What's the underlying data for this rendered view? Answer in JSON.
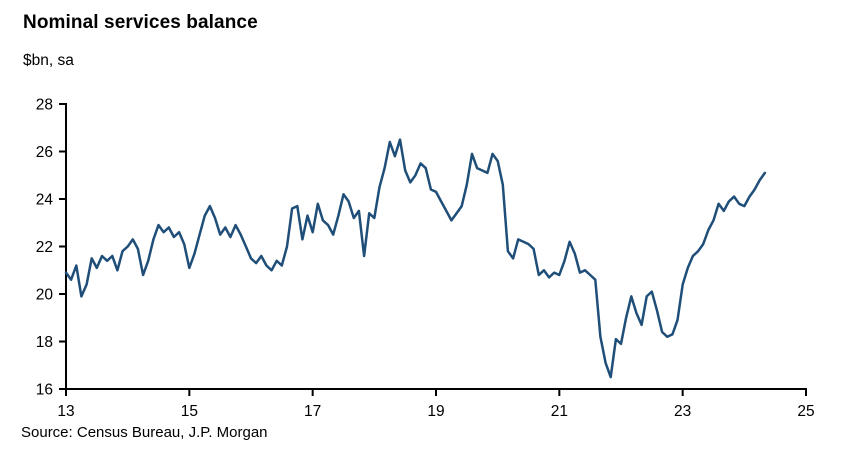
{
  "title": "Nominal services balance",
  "subtitle": "$bn, sa",
  "source": "Source: Census Bureau, J.P. Morgan",
  "chart_data": {
    "type": "line",
    "title": "Nominal services balance",
    "ylabel": "$bn, sa",
    "series_name": "Nominal services balance ($bn, sa)",
    "frequency": "monthly",
    "x_start": 13,
    "xlim": [
      13,
      25
    ],
    "ylim": [
      16,
      28
    ],
    "x_ticks": [
      13,
      15,
      17,
      19,
      21,
      23,
      25
    ],
    "y_ticks": [
      16,
      18,
      20,
      22,
      24,
      26,
      28
    ],
    "grid": false,
    "legend": "none",
    "line_color": "#1F4E79",
    "axis_color": "#000000",
    "values": [
      20.9,
      20.6,
      21.2,
      19.9,
      20.4,
      21.5,
      21.1,
      21.6,
      21.4,
      21.6,
      21.0,
      21.8,
      22.0,
      22.3,
      21.9,
      20.8,
      21.4,
      22.3,
      22.9,
      22.6,
      22.8,
      22.4,
      22.6,
      22.1,
      21.1,
      21.7,
      22.5,
      23.3,
      23.7,
      23.2,
      22.5,
      22.8,
      22.4,
      22.9,
      22.5,
      22.0,
      21.5,
      21.3,
      21.6,
      21.2,
      21.0,
      21.4,
      21.2,
      22.0,
      23.6,
      23.7,
      22.3,
      23.3,
      22.6,
      23.8,
      23.1,
      22.9,
      22.5,
      23.3,
      24.2,
      23.9,
      23.2,
      23.5,
      21.6,
      23.4,
      23.2,
      24.5,
      25.3,
      26.4,
      25.8,
      26.5,
      25.2,
      24.7,
      25.0,
      25.5,
      25.3,
      24.4,
      24.3,
      23.9,
      23.5,
      23.1,
      23.4,
      23.7,
      24.6,
      25.9,
      25.3,
      25.2,
      25.1,
      25.9,
      25.6,
      24.6,
      21.8,
      21.5,
      22.3,
      22.2,
      22.1,
      21.9,
      20.8,
      21.0,
      20.7,
      20.9,
      20.8,
      21.4,
      22.2,
      21.7,
      20.9,
      21.0,
      20.8,
      20.6,
      18.2,
      17.1,
      16.5,
      18.1,
      17.9,
      19.0,
      19.9,
      19.2,
      18.7,
      19.9,
      20.1,
      19.3,
      18.4,
      18.2,
      18.3,
      18.9,
      20.4,
      21.1,
      21.6,
      21.8,
      22.1,
      22.7,
      23.1,
      23.8,
      23.5,
      23.9,
      24.1,
      23.8,
      23.7,
      24.1,
      24.4,
      24.8,
      25.1
    ]
  }
}
